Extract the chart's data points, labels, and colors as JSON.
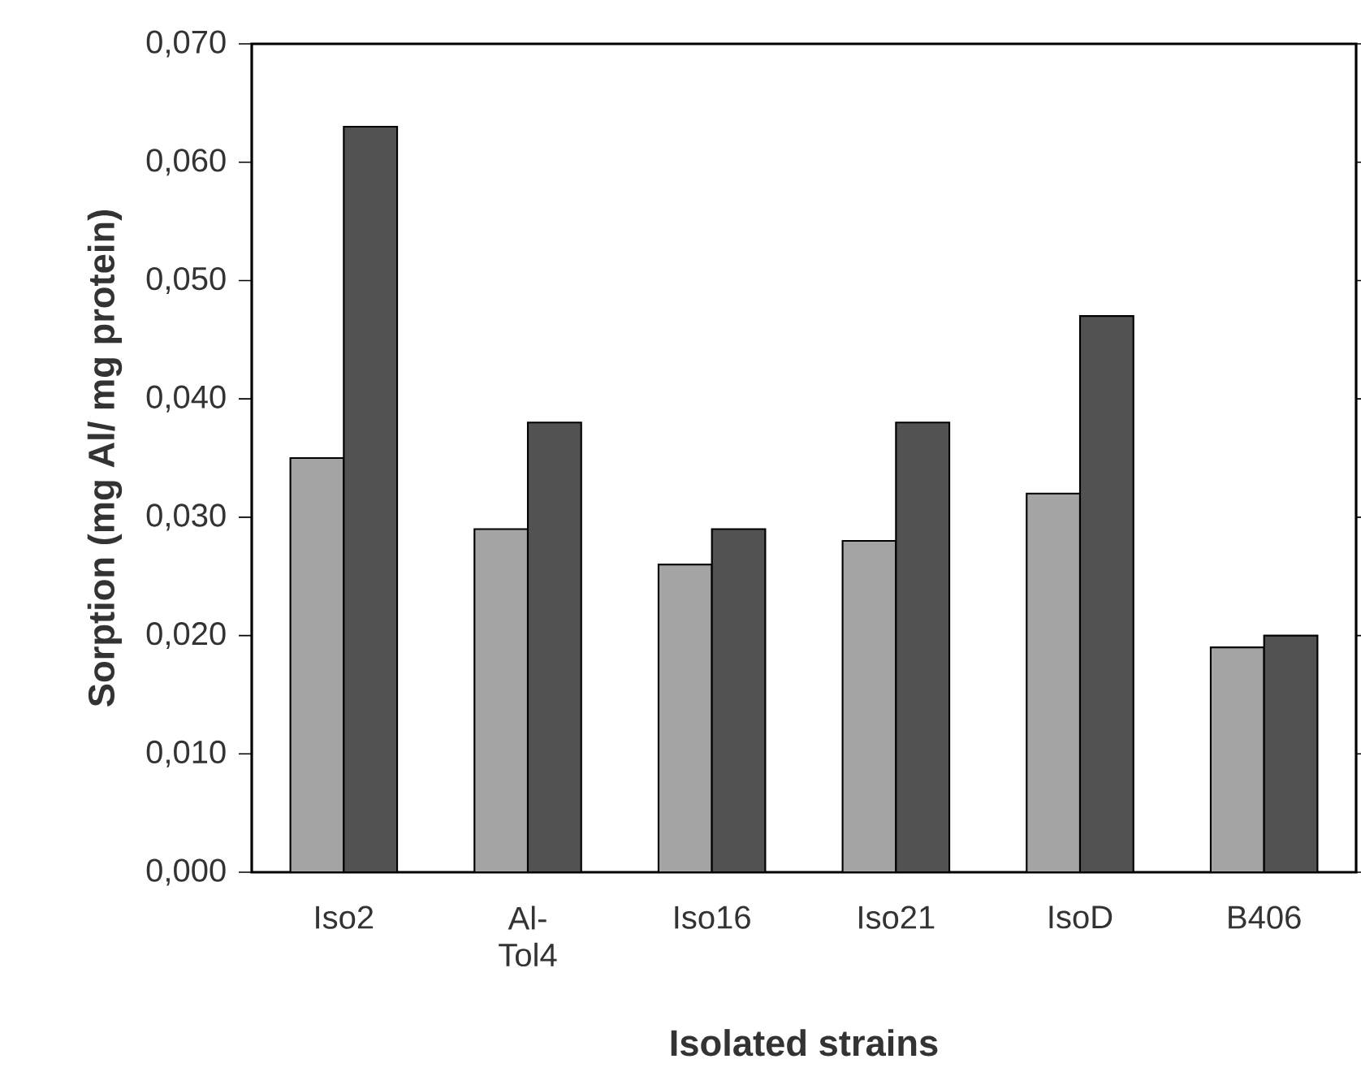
{
  "chart_data": {
    "type": "bar",
    "xlabel": "Isolated strains",
    "ylabel": "Sorption (mg Al/ mg protein)",
    "categories": [
      "Iso2",
      "Al-Tol4",
      "Iso16",
      "Iso21",
      "IsoD",
      "B406"
    ],
    "series": [
      {
        "color": "#a4a4a4",
        "values": [
          0.035,
          0.029,
          0.026,
          0.028,
          0.032,
          0.019
        ]
      },
      {
        "color": "#525252",
        "values": [
          0.063,
          0.038,
          0.029,
          0.038,
          0.047,
          0.02
        ]
      }
    ],
    "ylim": [
      0,
      0.07
    ],
    "yticks": [
      {
        "value": 0,
        "label": "0,000"
      },
      {
        "value": 0.01,
        "label": "0,010"
      },
      {
        "value": 0.02,
        "label": "0,020"
      },
      {
        "value": 0.03,
        "label": "0,030"
      },
      {
        "value": 0.04,
        "label": "0,040"
      },
      {
        "value": 0.05,
        "label": "0,050"
      },
      {
        "value": 0.06,
        "label": "0,060"
      },
      {
        "value": 0.07,
        "label": "0,070"
      }
    ],
    "grid": false
  }
}
